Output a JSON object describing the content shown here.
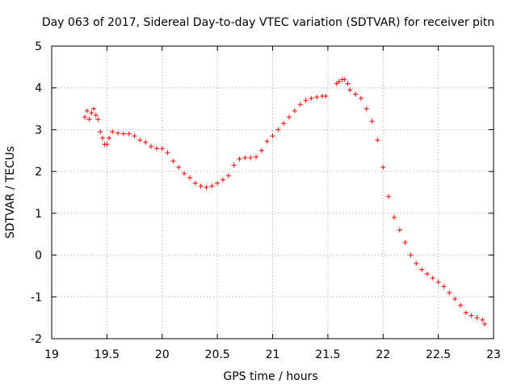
{
  "chart_data": {
    "type": "scatter",
    "title": "Day 063 of 2017, Sidereal Day-to-day VTEC variation (SDTVAR) for receiver pitn",
    "xlabel": "GPS time / hours",
    "ylabel": "SDTVAR / TECUs",
    "xlim": [
      19,
      23
    ],
    "ylim": [
      -2,
      5
    ],
    "xticks": [
      "19",
      "19.5",
      "20",
      "20.5",
      "21",
      "21.5",
      "22",
      "22.5",
      "23"
    ],
    "yticks": [
      "-2",
      "-1",
      "0",
      "1",
      "2",
      "3",
      "4",
      "5"
    ],
    "grid": true,
    "marker": "+",
    "color": "#ff0000",
    "series": [
      {
        "name": "SDTVAR",
        "x": [
          19.3,
          19.32,
          19.34,
          19.36,
          19.38,
          19.4,
          19.42,
          19.44,
          19.46,
          19.48,
          19.5,
          19.52,
          19.55,
          19.6,
          19.65,
          19.7,
          19.75,
          19.8,
          19.85,
          19.9,
          19.95,
          20.0,
          20.05,
          20.1,
          20.15,
          20.2,
          20.25,
          20.3,
          20.35,
          20.4,
          20.45,
          20.5,
          20.55,
          20.6,
          20.65,
          20.7,
          20.75,
          20.8,
          20.85,
          20.9,
          20.95,
          21.0,
          21.05,
          21.1,
          21.15,
          21.2,
          21.25,
          21.3,
          21.35,
          21.4,
          21.45,
          21.48,
          21.58,
          21.6,
          21.63,
          21.65,
          21.68,
          21.7,
          21.75,
          21.8,
          21.85,
          21.9,
          21.95,
          22.0,
          22.05,
          22.1,
          22.15,
          22.2,
          22.25,
          22.3,
          22.35,
          22.4,
          22.45,
          22.5,
          22.55,
          22.6,
          22.65,
          22.7,
          22.75,
          22.8,
          22.85,
          22.9,
          22.92
        ],
        "y": [
          3.3,
          3.45,
          3.25,
          3.4,
          3.5,
          3.35,
          3.25,
          2.95,
          2.8,
          2.65,
          2.65,
          2.8,
          2.95,
          2.92,
          2.9,
          2.9,
          2.85,
          2.75,
          2.7,
          2.6,
          2.55,
          2.55,
          2.45,
          2.25,
          2.1,
          1.95,
          1.85,
          1.72,
          1.65,
          1.62,
          1.65,
          1.72,
          1.8,
          1.9,
          2.15,
          2.3,
          2.33,
          2.33,
          2.35,
          2.5,
          2.72,
          2.85,
          3.0,
          3.15,
          3.3,
          3.45,
          3.6,
          3.7,
          3.75,
          3.78,
          3.8,
          3.8,
          4.1,
          4.15,
          4.2,
          4.2,
          4.1,
          3.95,
          3.85,
          3.75,
          3.5,
          3.2,
          2.75,
          2.1,
          1.4,
          0.9,
          0.6,
          0.3,
          0.0,
          -0.2,
          -0.35,
          -0.45,
          -0.55,
          -0.65,
          -0.75,
          -0.9,
          -1.05,
          -1.2,
          -1.38,
          -1.45,
          -1.5,
          -1.55,
          -1.65
        ]
      }
    ]
  }
}
